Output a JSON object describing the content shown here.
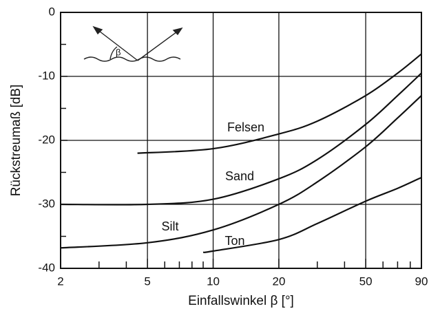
{
  "chart_data": {
    "type": "line",
    "xlabel": "Einfallswinkel β [°]",
    "ylabel": "Rückstreumaß [dB]",
    "inset_label": "β",
    "xscale": "log",
    "xlim": [
      2,
      90
    ],
    "ylim": [
      -40,
      0
    ],
    "xticks": [
      2,
      5,
      10,
      20,
      50,
      90
    ],
    "xticks_minor": [
      3,
      4,
      6,
      7,
      8,
      9,
      30,
      40,
      60,
      70,
      80
    ],
    "yticks": [
      -40,
      -30,
      -20,
      -10,
      0
    ],
    "yticks_minor": [
      -35,
      -25,
      -15,
      -5
    ],
    "grid": true,
    "series": [
      {
        "name": "Felsen",
        "color": "#111111",
        "x": [
          4.5,
          10,
          20,
          30,
          50,
          70,
          90
        ],
        "values": [
          -22,
          -21.3,
          -19,
          -17,
          -13,
          -9.5,
          -6.5
        ]
      },
      {
        "name": "Sand",
        "color": "#111111",
        "x": [
          2,
          5,
          10,
          20,
          30,
          50,
          70,
          90
        ],
        "values": [
          -30,
          -30,
          -29.2,
          -26,
          -23,
          -17.5,
          -13,
          -9.5
        ]
      },
      {
        "name": "Silt",
        "color": "#111111",
        "x": [
          2,
          5,
          10,
          20,
          30,
          50,
          70,
          90
        ],
        "values": [
          -36.8,
          -36,
          -34,
          -30,
          -26.5,
          -21,
          -16.5,
          -13
        ]
      },
      {
        "name": "Ton",
        "color": "#111111",
        "x": [
          9,
          10,
          20,
          30,
          50,
          70,
          90
        ],
        "values": [
          -37.5,
          -37.3,
          -35.5,
          -33,
          -29.5,
          -27.5,
          -25.8
        ]
      }
    ]
  }
}
